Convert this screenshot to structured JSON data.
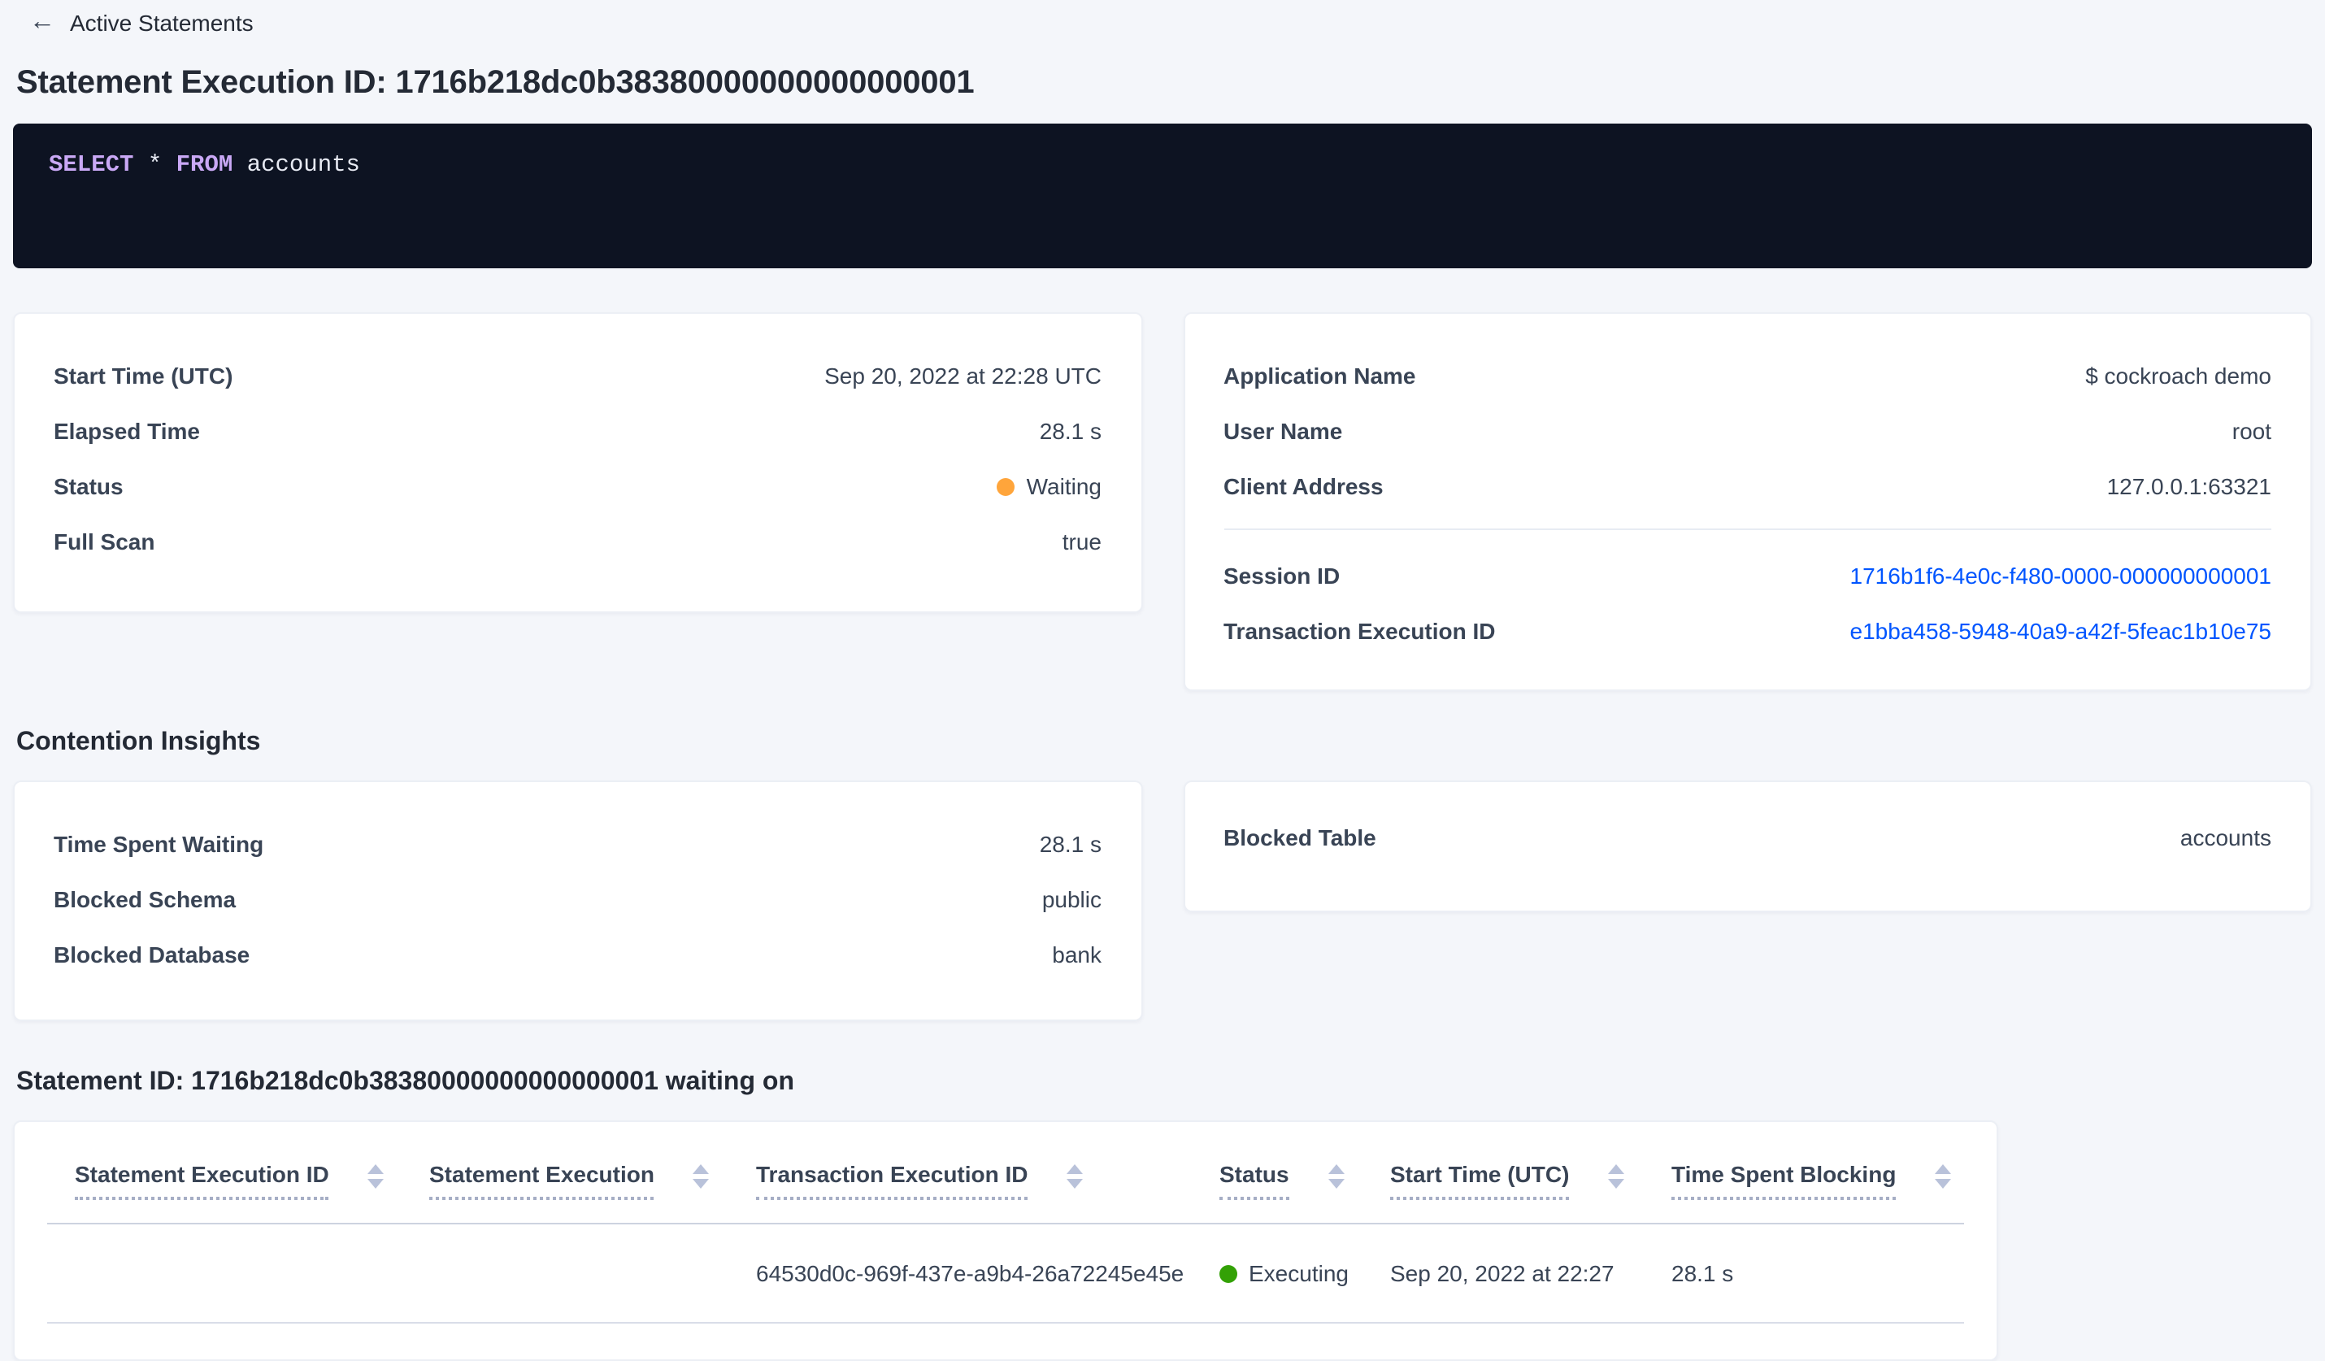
{
  "colors": {
    "page_background": "#f4f6fa",
    "card_background": "#ffffff",
    "link_blue": "#0055ff",
    "status_waiting_orange": "#ffa53b",
    "status_executing_green": "#33a106",
    "code_block_background": "#0d1322",
    "code_keyword_purple": "#c9a8f5",
    "code_text": "#e7eaf3"
  },
  "header": {
    "back_icon_glyph": "←",
    "back_label": "Active Statements",
    "title": "Statement Execution ID: 1716b218dc0b38380000000000000001"
  },
  "sql": {
    "parts": [
      {
        "text": "SELECT ",
        "role": "keyword"
      },
      {
        "text": "* ",
        "role": "plain"
      },
      {
        "text": "FROM ",
        "role": "keyword"
      },
      {
        "text": "accounts",
        "role": "plain"
      }
    ]
  },
  "execution_details": {
    "start_time_label": "Start Time (UTC)",
    "start_time_value": "Sep 20, 2022 at 22:28 UTC",
    "elapsed_time_label": "Elapsed Time",
    "elapsed_time_value": "28.1 s",
    "status_label": "Status",
    "status_value": "Waiting",
    "full_scan_label": "Full Scan",
    "full_scan_value": "true"
  },
  "session_details": {
    "application_name_label": "Application Name",
    "application_name_value": "$ cockroach demo",
    "user_name_label": "User Name",
    "user_name_value": "root",
    "client_address_label": "Client Address",
    "client_address_value": "127.0.0.1:63321",
    "session_id_label": "Session ID",
    "session_id_value": "1716b1f6-4e0c-f480-0000-000000000001",
    "transaction_execution_id_label": "Transaction Execution ID",
    "transaction_execution_id_value": "e1bba458-5948-40a9-a42f-5feac1b10e75"
  },
  "contention": {
    "heading": "Contention Insights",
    "time_spent_waiting_label": "Time Spent Waiting",
    "time_spent_waiting_value": "28.1 s",
    "blocked_schema_label": "Blocked Schema",
    "blocked_schema_value": "public",
    "blocked_database_label": "Blocked Database",
    "blocked_database_value": "bank",
    "blocked_table_label": "Blocked Table",
    "blocked_table_value": "accounts"
  },
  "waiting_on": {
    "heading": "Statement ID: 1716b218dc0b38380000000000000001 waiting on",
    "columns": [
      {
        "label": "Statement Execution ID"
      },
      {
        "label": "Statement Execution"
      },
      {
        "label": "Transaction Execution ID"
      },
      {
        "label": "Status"
      },
      {
        "label": "Start Time (UTC)"
      },
      {
        "label": "Time Spent Blocking"
      }
    ],
    "rows": [
      {
        "statement_execution_id": "",
        "statement_execution": "",
        "transaction_execution_id": "64530d0c-969f-437e-a9b4-26a72245e45e",
        "status": "Executing",
        "start_time": "Sep 20, 2022 at 22:27",
        "time_spent_blocking": "28.1 s"
      }
    ]
  }
}
